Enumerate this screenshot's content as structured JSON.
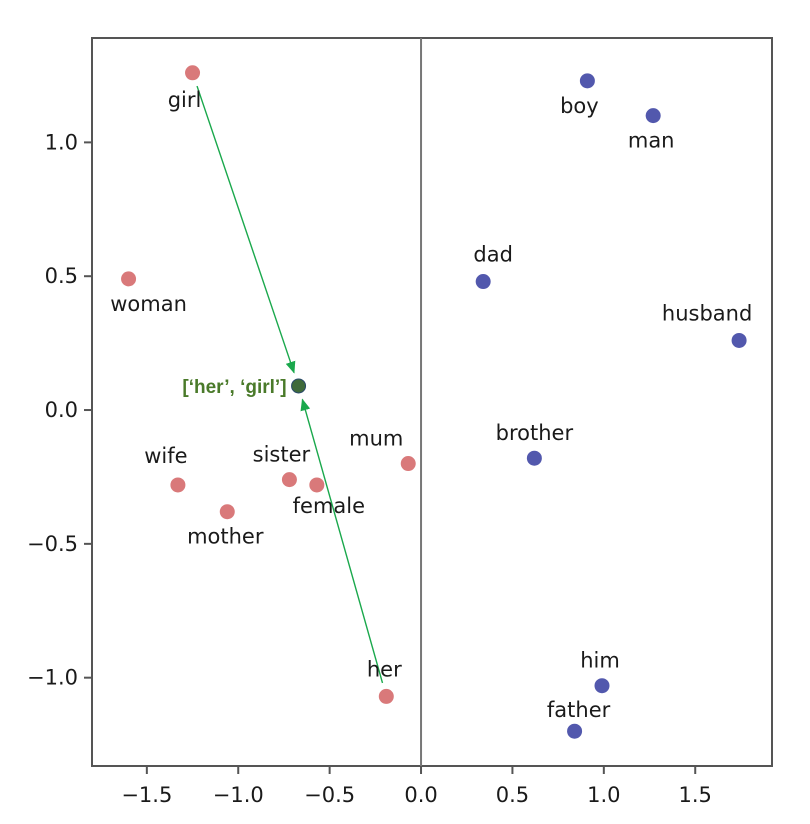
{
  "chart_data": {
    "type": "scatter",
    "title": "",
    "xlabel": "",
    "ylabel": "",
    "xlim": [
      -1.8,
      1.92
    ],
    "ylim": [
      -1.33,
      1.39
    ],
    "x_ticks": [
      -1.5,
      -1.0,
      -0.5,
      0.0,
      0.5,
      1.0,
      1.5
    ],
    "x_tick_labels": [
      "−1.5",
      "−1.0",
      "−0.5",
      "0.0",
      "0.5",
      "1.0",
      "1.5"
    ],
    "y_ticks": [
      1.0,
      0.5,
      0.0,
      -0.5,
      -1.0
    ],
    "y_tick_labels": [
      "1.0",
      "0.5",
      "0.0",
      "−0.5",
      "−1.0"
    ],
    "grid": false,
    "reference_line": {
      "x": 0.0
    },
    "colors": {
      "female": "#d9797a",
      "male": "#5258ad",
      "combined": "#3f6a3a",
      "arrow": "#1aa84c"
    },
    "series": [
      {
        "color_key": "female",
        "points": [
          {
            "label": "girl",
            "x": -1.25,
            "y": 1.26
          },
          {
            "label": "woman",
            "x": -1.6,
            "y": 0.49
          },
          {
            "label": "wife",
            "x": -1.33,
            "y": -0.28
          },
          {
            "label": "mother",
            "x": -1.06,
            "y": -0.38
          },
          {
            "label": "sister",
            "x": -0.72,
            "y": -0.26
          },
          {
            "label": "female",
            "x": -0.57,
            "y": -0.28
          },
          {
            "label": "mum",
            "x": -0.07,
            "y": -0.2
          },
          {
            "label": "her",
            "x": -0.19,
            "y": -1.07
          }
        ]
      },
      {
        "color_key": "male",
        "points": [
          {
            "label": "boy",
            "x": 0.91,
            "y": 1.23
          },
          {
            "label": "man",
            "x": 1.27,
            "y": 1.1
          },
          {
            "label": "dad",
            "x": 0.34,
            "y": 0.48
          },
          {
            "label": "husband",
            "x": 1.74,
            "y": 0.26
          },
          {
            "label": "brother",
            "x": 0.62,
            "y": -0.18
          },
          {
            "label": "him",
            "x": 0.99,
            "y": -1.03
          },
          {
            "label": "father",
            "x": 0.84,
            "y": -1.2
          }
        ]
      }
    ],
    "combined_point": {
      "label": "['her', 'girl']",
      "x": -0.67,
      "y": 0.09
    },
    "arrows": [
      {
        "from": "girl",
        "to": "['her', 'girl']"
      },
      {
        "from": "her",
        "to": "['her', 'girl']"
      }
    ]
  },
  "display": {
    "combo_label_text": "[‘her’, ‘girl’]"
  }
}
